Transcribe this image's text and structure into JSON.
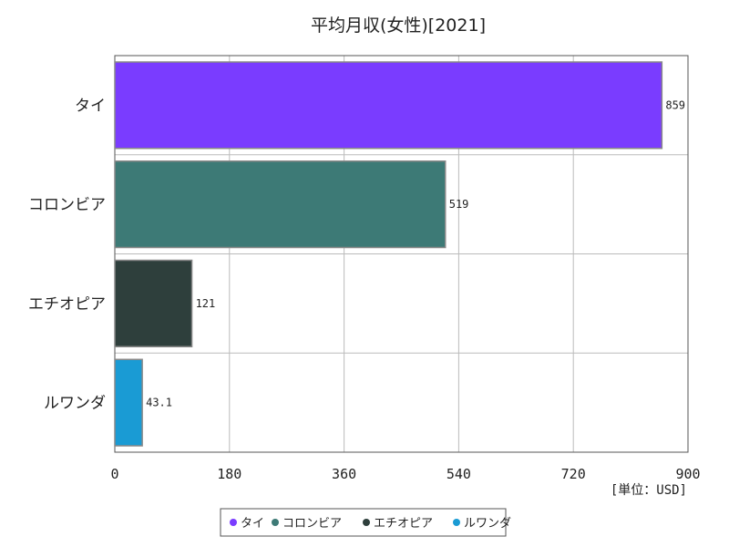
{
  "chart_data": {
    "type": "bar",
    "orientation": "horizontal",
    "title": "平均月収(女性)[2021]",
    "unit_label": "[単位：USD]",
    "categories": [
      "タイ",
      "コロンビア",
      "エチオピア",
      "ルワンダ"
    ],
    "values": [
      859,
      519,
      121,
      43.1
    ],
    "value_labels": [
      "859",
      "519",
      "121",
      "43.1"
    ],
    "colors": [
      "#7a3cff",
      "#3d7a76",
      "#2e3f3c",
      "#1a9bd4"
    ],
    "xlim": [
      0,
      900
    ],
    "xticks": [
      0,
      180,
      360,
      540,
      720,
      900
    ],
    "grid": true,
    "legend": {
      "position": "bottom",
      "entries": [
        "タイ",
        "コロンビア",
        "エチオピア",
        "ルワンダ"
      ]
    }
  }
}
